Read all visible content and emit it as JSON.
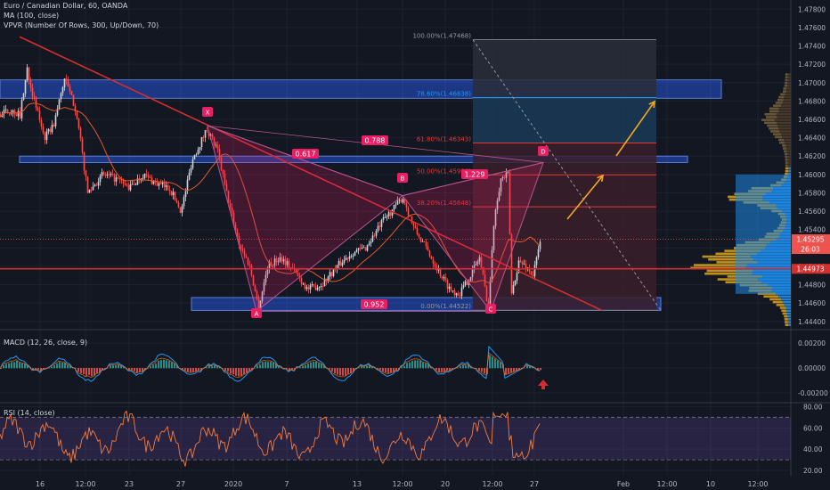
{
  "header": {
    "symbol": "Euro / Canadian Dollar, 60, OANDA",
    "ma_label": "MA (100, close)",
    "vpvr_label": "VPVR (Number Of Rows, 300, Up/Down, 70)"
  },
  "macd_label": "MACD (12, 26, close, 9)",
  "rsi_label": "RSI (14, close)",
  "colors": {
    "background": "#131722",
    "grid": "#1e2230",
    "axis_text": "#b2b5be",
    "up_candle": "#d1d4dc",
    "zone_blue": "#2962ff",
    "harmonic_pink": "#e91e63",
    "trend_red": "#d32f2f",
    "arrow_orange": "#f5a623",
    "ma_line": "#e05a2b",
    "rsi_line": "#f57c3a",
    "rsi_band": "#7e57c2",
    "vp_up": "#1e88e5",
    "vp_down": "#c8961e"
  },
  "chart_data": [
    {
      "type": "candlestick",
      "panel": "price",
      "y_ticks": [
        "1.47800",
        "1.47600",
        "1.47400",
        "1.47200",
        "1.47000",
        "1.46800",
        "1.46600",
        "1.46400",
        "1.46200",
        "1.46000",
        "1.45800",
        "1.45600",
        "1.45400",
        "1.45200",
        "1.45000",
        "1.44800",
        "1.44600",
        "1.44400"
      ],
      "ylim": [
        1.4433,
        1.479
      ],
      "x_ticks": [
        "16",
        "12:00",
        "23",
        "27",
        "2020",
        "7",
        "13",
        "12:00",
        "20",
        "12:00",
        "27",
        "Feb",
        "12:00",
        "10",
        "12:00"
      ],
      "price_tags": [
        {
          "label": "1.45295",
          "value": 1.45295
        },
        {
          "label": "26:03",
          "value": 1.4521
        },
        {
          "label": "1.44973",
          "value": 1.44973
        }
      ],
      "fib_levels": [
        {
          "label": "100.00%(1.47468)",
          "value": 1.47468
        },
        {
          "label": "78.60%(1.46838)",
          "value": 1.46838
        },
        {
          "label": "61.80%(1.46343)",
          "value": 1.46343
        },
        {
          "label": "50.00%(1.45996)",
          "value": 1.45996
        },
        {
          "label": "38.20%(1.45648)",
          "value": 1.45648
        },
        {
          "label": "0.00%(1.44522)",
          "value": 1.44522
        }
      ],
      "pattern_points": [
        "X",
        "A",
        "B",
        "C",
        "D"
      ],
      "pattern_ratios": [
        "0.617",
        "0.788",
        "1.229",
        "0.952"
      ],
      "zones": [
        {
          "from": 1.4683,
          "to": 1.4703
        },
        {
          "from": 1.4613,
          "to": 1.462
        },
        {
          "from": 1.4452,
          "to": 1.4466
        }
      ],
      "horizontal_line": 1.44973
    },
    {
      "type": "histogram",
      "panel": "macd",
      "y_ticks": [
        "0.00200",
        "0.00000",
        "-0.00200"
      ],
      "ylim": [
        -0.0028,
        0.0028
      ]
    },
    {
      "type": "line",
      "panel": "rsi",
      "y_ticks": [
        "80.00",
        "60.00",
        "40.00",
        "20.00"
      ],
      "ylim": [
        15,
        82
      ],
      "bands": [
        70,
        30
      ]
    }
  ]
}
